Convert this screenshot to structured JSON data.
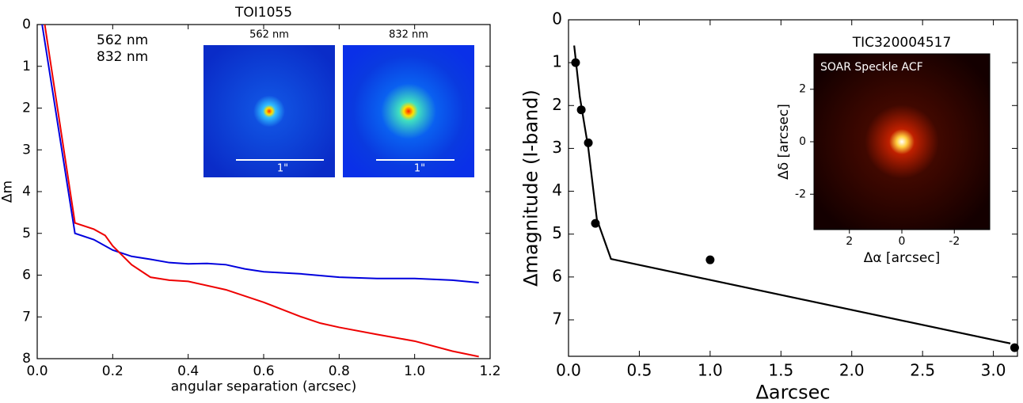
{
  "chart_data": [
    {
      "type": "line",
      "title": "TOI1055",
      "xlabel": "angular separation (arcsec)",
      "ylabel": "Δm",
      "xlim": [
        0,
        1.2
      ],
      "ylim": [
        8,
        0
      ],
      "xticks": [
        {
          "value": 0,
          "label": "0.0"
        },
        0.2,
        0.4,
        0.6,
        0.8,
        {
          "value": 1,
          "label": "1.0"
        },
        1.2
      ],
      "yticks": [
        0,
        1,
        2,
        3,
        4,
        5,
        6,
        7,
        8
      ],
      "series": [
        {
          "name": "562 nm",
          "color": "#0000dd",
          "x": [
            0.013,
            0.1,
            0.15,
            0.2,
            0.25,
            0.3,
            0.35,
            0.4,
            0.45,
            0.5,
            0.55,
            0.6,
            0.7,
            0.8,
            0.9,
            1.0,
            1.1,
            1.17
          ],
          "values": [
            0,
            5.0,
            5.15,
            5.4,
            5.55,
            5.62,
            5.7,
            5.73,
            5.72,
            5.75,
            5.85,
            5.92,
            5.97,
            6.05,
            6.08,
            6.08,
            6.12,
            6.18
          ]
        },
        {
          "name": "832 nm",
          "color": "#ee0000",
          "x": [
            0.02,
            0.1,
            0.15,
            0.18,
            0.2,
            0.25,
            0.3,
            0.35,
            0.4,
            0.5,
            0.6,
            0.7,
            0.75,
            0.8,
            0.9,
            1.0,
            1.1,
            1.17
          ],
          "values": [
            0,
            4.75,
            4.9,
            5.05,
            5.3,
            5.75,
            6.05,
            6.12,
            6.15,
            6.35,
            6.65,
            7.0,
            7.15,
            7.25,
            7.42,
            7.58,
            7.82,
            7.95
          ]
        }
      ],
      "inset_scale_label": "1\""
    },
    {
      "type": "scatter",
      "xlabel": "Δarcsec",
      "ylabel": "Δmagnitude (I-band)",
      "xlim": [
        0,
        3.17
      ],
      "ylim": [
        7.85,
        0
      ],
      "xticks": [
        {
          "value": 0,
          "label": "0.0"
        },
        0.5,
        {
          "value": 1,
          "label": "1.0"
        },
        1.5,
        {
          "value": 2,
          "label": "2.0"
        },
        2.5,
        {
          "value": 3,
          "label": "3.0"
        }
      ],
      "yticks": [
        0,
        1,
        2,
        3,
        4,
        5,
        6,
        7
      ],
      "points": {
        "color": "#000000",
        "x": [
          0.05,
          0.09,
          0.14,
          0.19,
          1.0,
          3.15
        ],
        "values": [
          1.0,
          2.1,
          2.87,
          4.75,
          5.6,
          7.65
        ]
      },
      "line": {
        "color": "#000000",
        "x": [
          0.04,
          0.08,
          0.14,
          0.2,
          0.3,
          3.12
        ],
        "values": [
          0.6,
          1.8,
          3.0,
          4.65,
          5.58,
          7.55
        ]
      },
      "inset": {
        "title": "TIC320004517",
        "label": "SOAR Speckle ACF",
        "xlabel": "Δα [arcsec]",
        "ylabel": "Δδ [arcsec]",
        "xlim": [
          3.35,
          -3.35
        ],
        "ylim": [
          -3.35,
          3.35
        ],
        "xticks": [
          2,
          0,
          -2
        ],
        "yticks": [
          -2,
          0,
          2
        ]
      }
    }
  ]
}
